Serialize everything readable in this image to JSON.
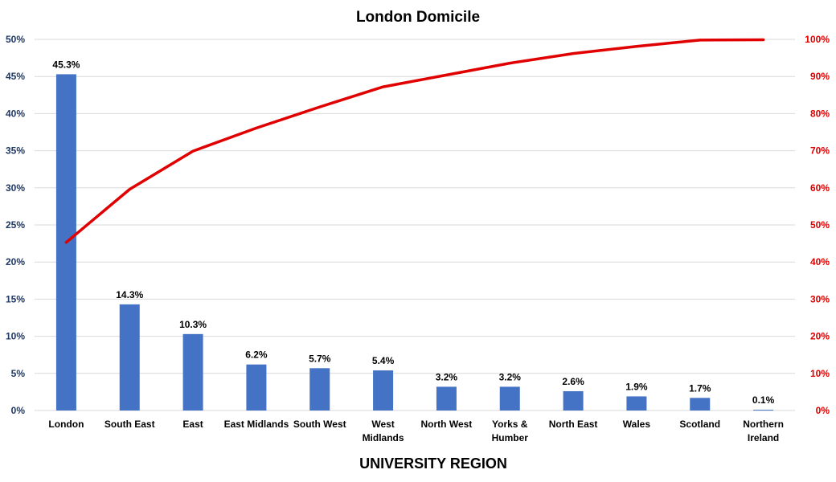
{
  "chart_data": {
    "type": "bar",
    "title": "London Domicile",
    "xlabel": "UNIVERSITY REGION",
    "ylabel": "",
    "categories": [
      "London",
      "South East",
      "East",
      "East Midlands",
      "South West",
      "West Midlands",
      "North West",
      "Yorks & Humber",
      "North East",
      "Wales",
      "Scotland",
      "Northern Ireland"
    ],
    "category_lines": [
      [
        "London"
      ],
      [
        "South East"
      ],
      [
        "East"
      ],
      [
        "East Midlands"
      ],
      [
        "South West"
      ],
      [
        "West",
        "Midlands"
      ],
      [
        "North West"
      ],
      [
        "Yorks &",
        "Humber"
      ],
      [
        "North East"
      ],
      [
        "Wales"
      ],
      [
        "Scotland"
      ],
      [
        "Northern",
        "Ireland"
      ]
    ],
    "series": [
      {
        "type": "bar",
        "axis": "left",
        "color": "#4472c4",
        "values": [
          45.3,
          14.3,
          10.3,
          6.2,
          5.7,
          5.4,
          3.2,
          3.2,
          2.6,
          1.9,
          1.7,
          0.1
        ],
        "data_labels": [
          "45.3%",
          "14.3%",
          "10.3%",
          "6.2%",
          "5.7%",
          "5.4%",
          "3.2%",
          "3.2%",
          "2.6%",
          "1.9%",
          "1.7%",
          "0.1%"
        ]
      },
      {
        "type": "line",
        "axis": "right",
        "color": "#e00000",
        "values": [
          45.3,
          59.6,
          69.9,
          76.1,
          81.8,
          87.2,
          90.4,
          93.6,
          96.2,
          98.1,
          99.8,
          99.9
        ]
      }
    ],
    "y_left": {
      "ylim": [
        0,
        50
      ],
      "ticks": [
        "0%",
        "5%",
        "10%",
        "15%",
        "20%",
        "25%",
        "30%",
        "35%",
        "40%",
        "45%",
        "50%"
      ],
      "color": "#1f3864"
    },
    "y_right": {
      "ylim": [
        0,
        100
      ],
      "ticks": [
        "0%",
        "10%",
        "20%",
        "30%",
        "40%",
        "50%",
        "60%",
        "70%",
        "80%",
        "90%",
        "100%"
      ],
      "color": "#e00000"
    },
    "grid": true,
    "legend": "none"
  }
}
